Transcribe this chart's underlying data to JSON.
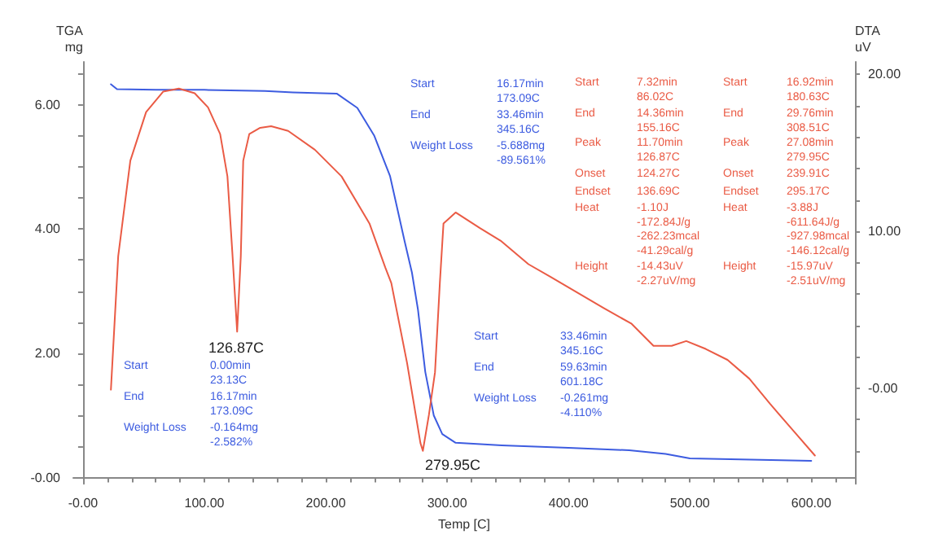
{
  "chart_data": {
    "type": "line",
    "xlabel": "Temp [C]",
    "ylabel": "TGA\nmg",
    "y2label": "DTA\nuV",
    "marker": "none",
    "line_style": "solid",
    "xlim": [
      -8,
      636
    ],
    "ylim": [
      -0.1,
      6.69
    ],
    "y2lim": [
      -6.1,
      20.8
    ],
    "xticks": [
      {
        "value": 0,
        "label": "-0.00"
      },
      {
        "value": 20,
        "label": null
      },
      {
        "value": 40,
        "label": null
      },
      {
        "value": 60,
        "label": null
      },
      {
        "value": 80,
        "label": null
      },
      {
        "value": 100,
        "label": "100.00"
      },
      {
        "value": 120,
        "label": null
      },
      {
        "value": 140,
        "label": null
      },
      {
        "value": 160,
        "label": null
      },
      {
        "value": 180,
        "label": null
      },
      {
        "value": 200,
        "label": "200.00"
      },
      {
        "value": 220,
        "label": null
      },
      {
        "value": 240,
        "label": null
      },
      {
        "value": 260,
        "label": null
      },
      {
        "value": 280,
        "label": null
      },
      {
        "value": 300,
        "label": "300.00"
      },
      {
        "value": 320,
        "label": null
      },
      {
        "value": 340,
        "label": null
      },
      {
        "value": 360,
        "label": null
      },
      {
        "value": 380,
        "label": null
      },
      {
        "value": 400,
        "label": "400.00"
      },
      {
        "value": 420,
        "label": null
      },
      {
        "value": 440,
        "label": null
      },
      {
        "value": 460,
        "label": null
      },
      {
        "value": 480,
        "label": null
      },
      {
        "value": 500,
        "label": "500.00"
      },
      {
        "value": 520,
        "label": null
      },
      {
        "value": 540,
        "label": null
      },
      {
        "value": 560,
        "label": null
      },
      {
        "value": 580,
        "label": null
      },
      {
        "value": 600,
        "label": "600.00"
      },
      {
        "value": 620,
        "label": null
      }
    ],
    "yticks": [
      {
        "value": 0,
        "label": "-0.00"
      },
      {
        "value": 0.5,
        "label": null
      },
      {
        "value": 1,
        "label": null
      },
      {
        "value": 1.5,
        "label": null
      },
      {
        "value": 2,
        "label": "2.00"
      },
      {
        "value": 2.5,
        "label": null
      },
      {
        "value": 3,
        "label": null
      },
      {
        "value": 3.5,
        "label": null
      },
      {
        "value": 4,
        "label": "4.00"
      },
      {
        "value": 4.5,
        "label": null
      },
      {
        "value": 5,
        "label": null
      },
      {
        "value": 5.5,
        "label": null
      },
      {
        "value": 6,
        "label": "6.00"
      },
      {
        "value": 6.5,
        "label": null
      }
    ],
    "y2ticks": [
      {
        "value": -4,
        "label": null
      },
      {
        "value": -2,
        "label": null
      },
      {
        "value": 0,
        "label": "-0.00"
      },
      {
        "value": 2,
        "label": null
      },
      {
        "value": 4,
        "label": null
      },
      {
        "value": 6,
        "label": null
      },
      {
        "value": 8,
        "label": null
      },
      {
        "value": 10,
        "label": "10.00"
      },
      {
        "value": 12,
        "label": null
      },
      {
        "value": 14,
        "label": null
      },
      {
        "value": 16,
        "label": null
      },
      {
        "value": 18,
        "label": null
      },
      {
        "value": 20,
        "label": "20.00"
      }
    ],
    "series": [
      {
        "color": "#3d5ce0",
        "x": [
          23,
          28,
          60,
          100,
          150,
          173,
          209,
          226,
          240,
          253,
          265,
          271,
          276,
          282,
          289,
          296,
          307,
          345,
          400,
          450,
          480,
          500,
          550,
          600
        ],
        "values": [
          6.33,
          6.25,
          6.24,
          6.24,
          6.22,
          6.2,
          6.18,
          5.95,
          5.5,
          4.85,
          3.8,
          3.3,
          2.7,
          1.7,
          1.0,
          0.7,
          0.56,
          0.52,
          0.48,
          0.44,
          0.38,
          0.31,
          0.29,
          0.27
        ]
      },
      {
        "color": "#ea5b45",
        "axis": "y2",
        "x": [
          23,
          29,
          39,
          52,
          66,
          79,
          92,
          103,
          113,
          119,
          123,
          127,
          130,
          132,
          137,
          146,
          155,
          169,
          191,
          213,
          236,
          249,
          254,
          267,
          278,
          280,
          285,
          290,
          294,
          297,
          307,
          327,
          344,
          367,
          385,
          407,
          429,
          452,
          470,
          485,
          497,
          513,
          531,
          549,
          566,
          585,
          603
        ],
        "values": [
          -0.1,
          8.4,
          14.5,
          17.6,
          18.9,
          19.1,
          18.8,
          17.9,
          16.2,
          13.5,
          8.7,
          3.6,
          8.4,
          14.5,
          16.2,
          16.6,
          16.7,
          16.4,
          15.2,
          13.5,
          10.5,
          7.7,
          6.7,
          1.6,
          -3.5,
          -4,
          -1.7,
          1.0,
          6.7,
          10.5,
          11.2,
          10.2,
          9.4,
          7.9,
          7.1,
          6.1,
          5.1,
          4.1,
          2.7,
          2.7,
          3.0,
          2.5,
          1.8,
          0.6,
          -1.0,
          -2.7,
          -4.3
        ]
      }
    ],
    "annotations": [
      "Start",
      "16.17min\n173.09C",
      "End",
      "33.46min\n345.16C",
      "Weight Loss",
      "-5.688mg\n-89.561%",
      "Start",
      "7.32min\n86.02C",
      "End",
      "14.36min\n155.16C",
      "Peak",
      "11.70min\n126.87C",
      "Onset",
      "124.27C",
      "Endset",
      "136.69C",
      "Heat",
      "-1.10J\n-172.84J/g\n-262.23mcal\n-41.29cal/g",
      "Height",
      "-14.43uV\n-2.27uV/mg",
      "Start",
      "16.92min\n180.63C",
      "End",
      "29.76min\n308.51C",
      "Peak",
      "27.08min\n279.95C",
      "Onset",
      "239.91C",
      "Endset",
      "295.17C",
      "Heat",
      "-3.88J\n-611.64J/g\n-927.98mcal\n-146.12cal/g",
      "Height",
      "-15.97uV\n-2.51uV/mg",
      "Start",
      "0.00min\n23.13C",
      "End",
      "16.17min\n173.09C",
      "Weight Loss",
      "-0.164mg\n-2.582%",
      "Start",
      "33.46min\n345.16C",
      "End",
      "59.63min\n601.18C",
      "Weight Loss",
      "-0.261mg\n-4.110%",
      "126.87C",
      "279.95C"
    ]
  }
}
